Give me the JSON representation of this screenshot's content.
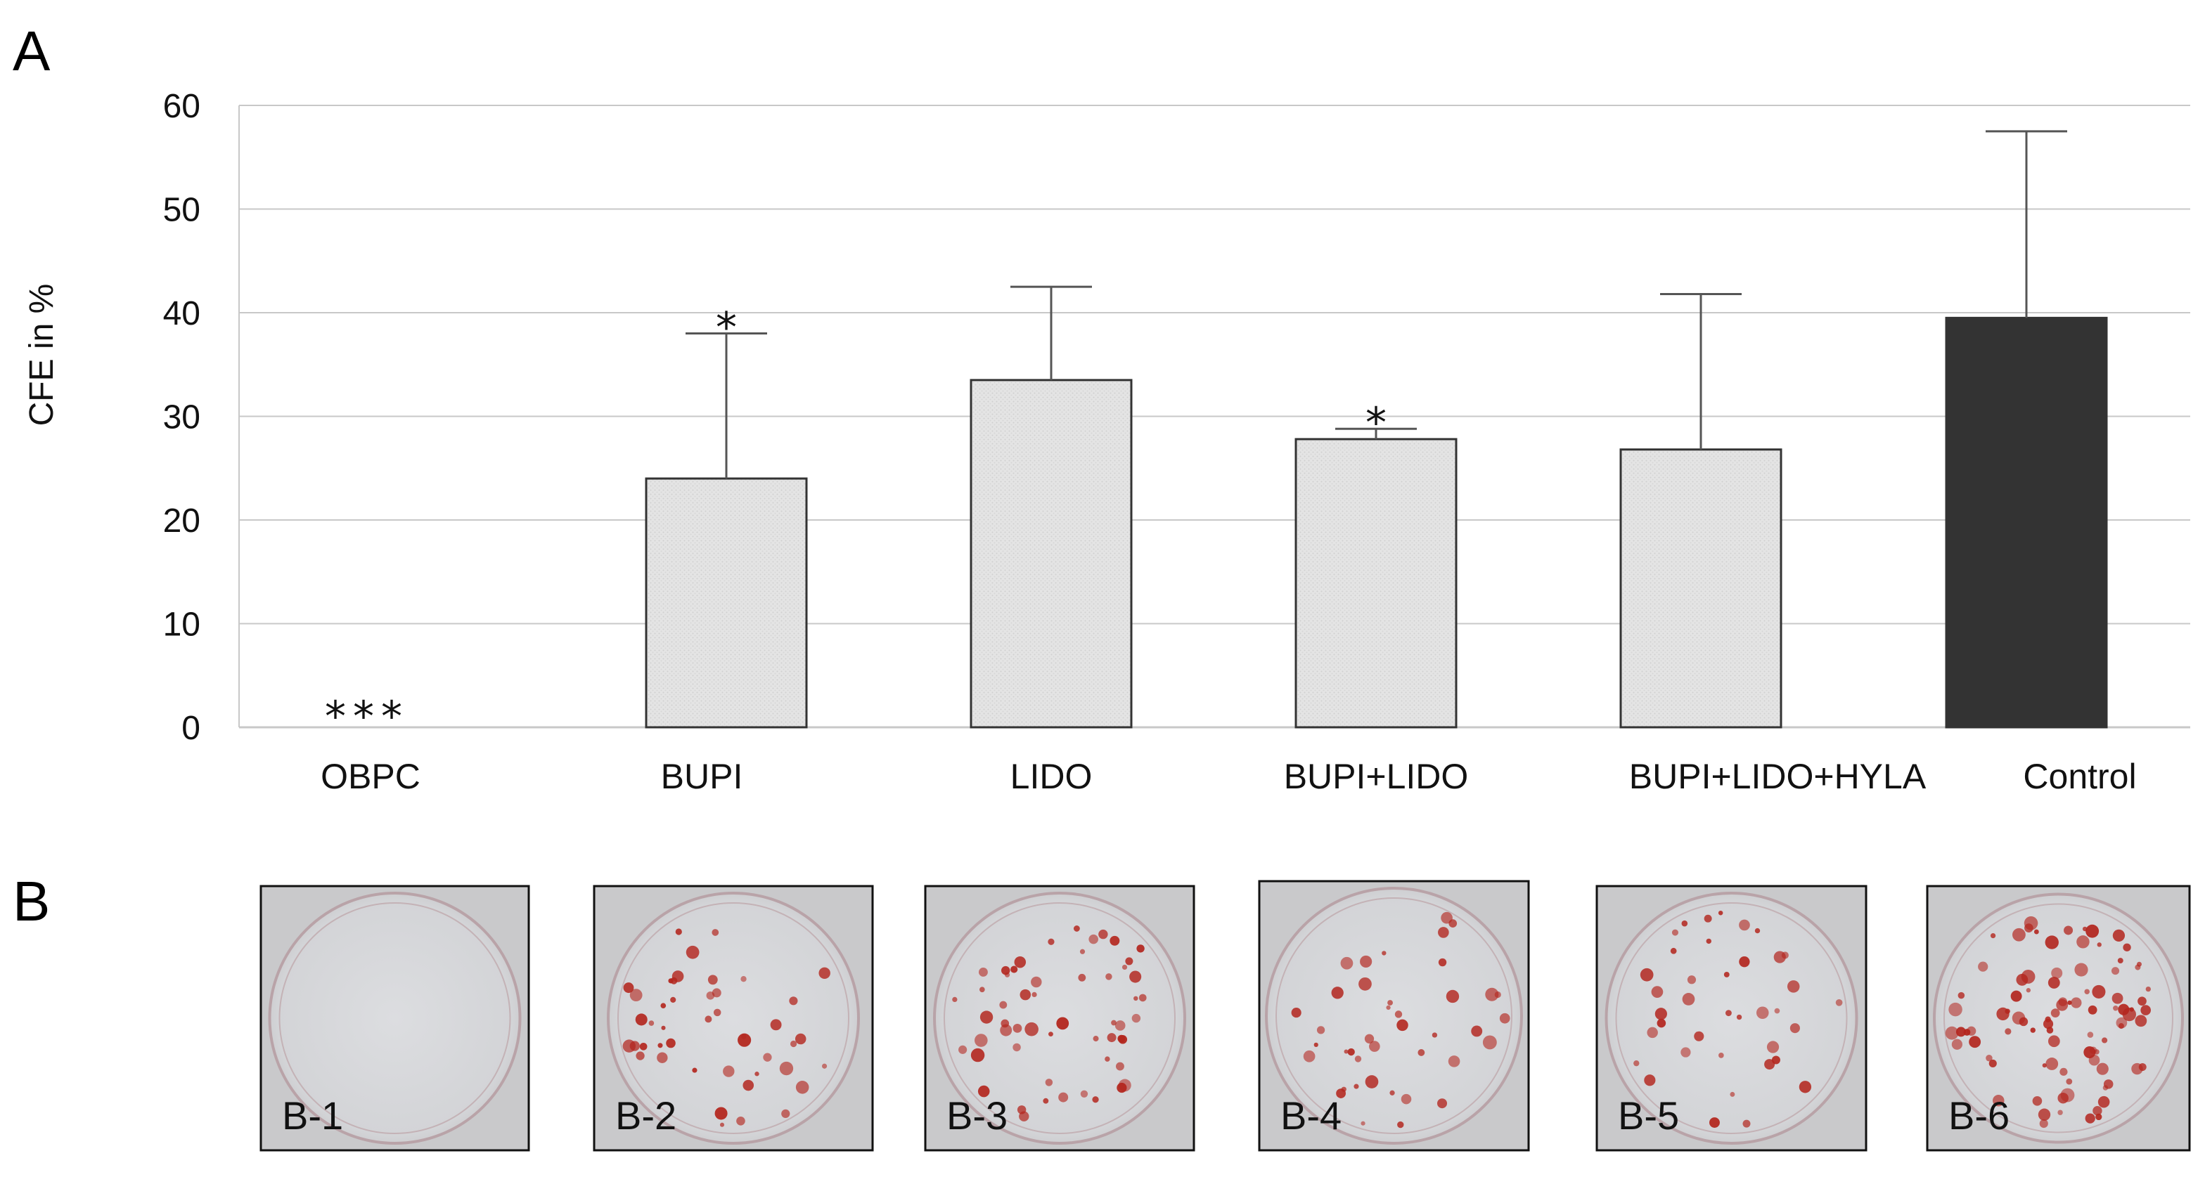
{
  "panel_a_letter": "A",
  "panel_b_letter": "B",
  "chart_data": {
    "type": "bar",
    "title": "",
    "xlabel": "",
    "ylabel": "CFE in %",
    "ylim": [
      0,
      60
    ],
    "yticks": [
      "0",
      "10",
      "20",
      "30",
      "40",
      "50",
      "60"
    ],
    "grid": true,
    "categories": [
      "OBPC",
      "BUPI",
      "LIDO",
      "BUPI+LIDO",
      "BUPI+LIDO+HYLA",
      "Control"
    ],
    "values": [
      0,
      24,
      33.5,
      27.8,
      26.8,
      39.5
    ],
    "error_upper": [
      0,
      14,
      9,
      1,
      15,
      18
    ],
    "significance": [
      "***",
      "*",
      "",
      "*",
      "",
      ""
    ],
    "bar_fill": [
      "#e3e3e3",
      "#e3e3e3",
      "#e3e3e3",
      "#e3e3e3",
      "#e3e3e3",
      "#333333"
    ]
  },
  "plates": [
    {
      "label": "B-1"
    },
    {
      "label": "B-2"
    },
    {
      "label": "B-3"
    },
    {
      "label": "B-4"
    },
    {
      "label": "B-5"
    },
    {
      "label": "B-6"
    }
  ],
  "colors": {
    "grid": "#c8c8c8",
    "bar_stroke": "#333333",
    "error": "#555555",
    "colony": "#b3261e",
    "plate_bg": "#d9dadb"
  }
}
